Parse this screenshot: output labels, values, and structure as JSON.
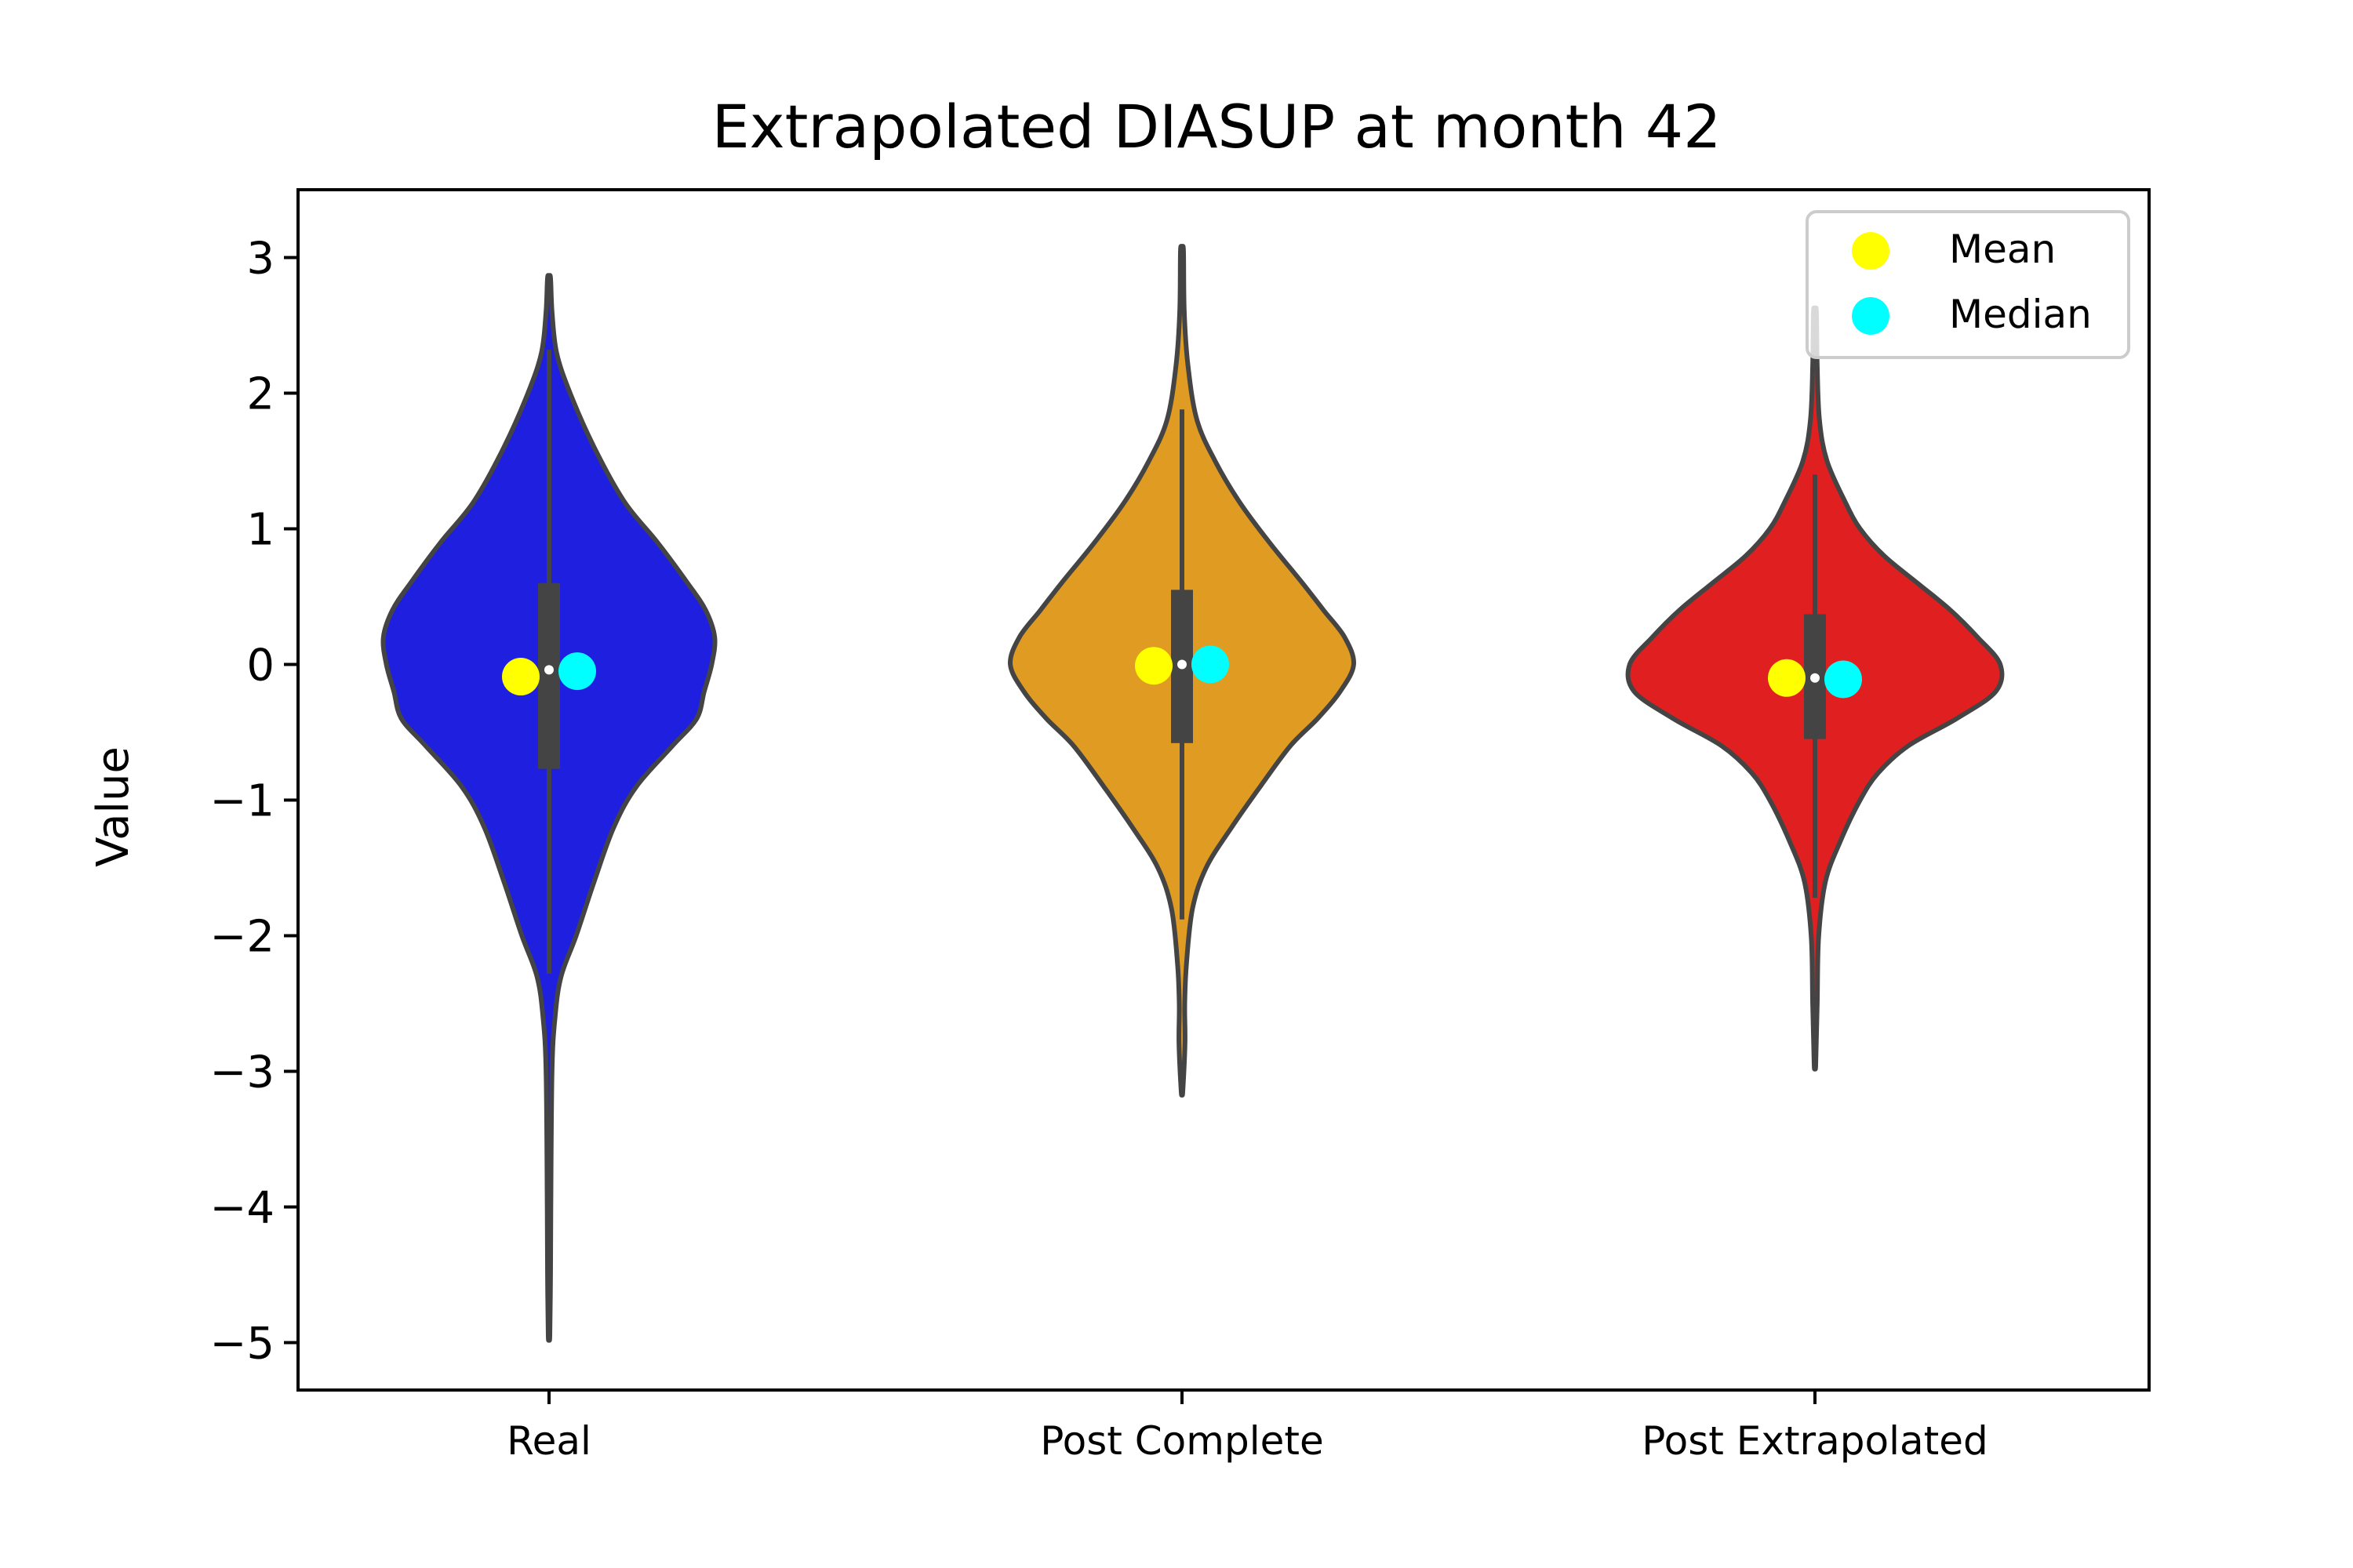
{
  "chart_data": {
    "type": "violin",
    "title": "Extrapolated DIASUP at month 42",
    "xlabel": "",
    "ylabel": "Value",
    "ylim": [
      -5.35,
      3.5
    ],
    "yticks": [
      3,
      2,
      1,
      0,
      -1,
      -2,
      -3,
      -4,
      -5
    ],
    "ytick_labels": [
      "3",
      "2",
      "1",
      "0",
      "−1",
      "−2",
      "−3",
      "−4",
      "−5"
    ],
    "categories": [
      "Real",
      "Post Complete",
      "Post Extrapolated"
    ],
    "legend": {
      "position": "top-right",
      "entries": [
        {
          "label": "Mean",
          "color": "#ffff00"
        },
        {
          "label": "Median",
          "color": "#00ffff"
        }
      ]
    },
    "violins": [
      {
        "name": "Real",
        "color": "#1f1fe0",
        "min": -4.95,
        "max": 2.85,
        "q1": -0.77,
        "q3": 0.6,
        "whisker_low": -2.28,
        "whisker_high": 2.32,
        "median": -0.04,
        "mean": -0.09,
        "median_marker": -0.05,
        "profile": [
          [
            2.85,
            0.01
          ],
          [
            2.6,
            0.02
          ],
          [
            2.3,
            0.05
          ],
          [
            2.0,
            0.14
          ],
          [
            1.6,
            0.3
          ],
          [
            1.2,
            0.5
          ],
          [
            0.9,
            0.72
          ],
          [
            0.6,
            0.92
          ],
          [
            0.4,
            1.04
          ],
          [
            0.2,
            1.1
          ],
          [
            0.0,
            1.08
          ],
          [
            -0.2,
            1.03
          ],
          [
            -0.4,
            0.98
          ],
          [
            -0.6,
            0.82
          ],
          [
            -0.9,
            0.58
          ],
          [
            -1.2,
            0.43
          ],
          [
            -1.6,
            0.3
          ],
          [
            -2.0,
            0.18
          ],
          [
            -2.3,
            0.08
          ],
          [
            -2.6,
            0.04
          ],
          [
            -3.0,
            0.02
          ],
          [
            -4.0,
            0.012
          ],
          [
            -4.5,
            0.01
          ],
          [
            -4.95,
            0.005
          ]
        ]
      },
      {
        "name": "Post Complete",
        "color": "#e09b22",
        "min": -3.15,
        "max": 3.05,
        "q1": -0.58,
        "q3": 0.55,
        "whisker_low": -1.88,
        "whisker_high": 1.88,
        "median": 0.0,
        "mean": -0.01,
        "median_marker": 0.0,
        "profile": [
          [
            3.05,
            0.01
          ],
          [
            2.6,
            0.015
          ],
          [
            2.2,
            0.04
          ],
          [
            1.8,
            0.1
          ],
          [
            1.5,
            0.22
          ],
          [
            1.2,
            0.38
          ],
          [
            0.9,
            0.58
          ],
          [
            0.6,
            0.8
          ],
          [
            0.4,
            0.94
          ],
          [
            0.2,
            1.08
          ],
          [
            0.0,
            1.14
          ],
          [
            -0.2,
            1.05
          ],
          [
            -0.4,
            0.9
          ],
          [
            -0.6,
            0.72
          ],
          [
            -0.9,
            0.52
          ],
          [
            -1.2,
            0.33
          ],
          [
            -1.5,
            0.16
          ],
          [
            -1.8,
            0.07
          ],
          [
            -2.2,
            0.03
          ],
          [
            -2.5,
            0.018
          ],
          [
            -2.8,
            0.02
          ],
          [
            -3.15,
            0.005
          ]
        ]
      },
      {
        "name": "Post Extrapolated",
        "color": "#e02020",
        "min": -2.95,
        "max": 2.6,
        "q1": -0.55,
        "q3": 0.37,
        "whisker_low": -1.72,
        "whisker_high": 1.4,
        "median": -0.1,
        "mean": -0.1,
        "median_marker": -0.11,
        "profile": [
          [
            2.6,
            0.01
          ],
          [
            2.2,
            0.015
          ],
          [
            1.8,
            0.03
          ],
          [
            1.5,
            0.08
          ],
          [
            1.2,
            0.2
          ],
          [
            1.0,
            0.3
          ],
          [
            0.8,
            0.46
          ],
          [
            0.6,
            0.68
          ],
          [
            0.4,
            0.9
          ],
          [
            0.2,
            1.08
          ],
          [
            0.0,
            1.23
          ],
          [
            -0.2,
            1.2
          ],
          [
            -0.4,
            0.94
          ],
          [
            -0.6,
            0.62
          ],
          [
            -0.8,
            0.42
          ],
          [
            -1.0,
            0.3
          ],
          [
            -1.3,
            0.17
          ],
          [
            -1.6,
            0.07
          ],
          [
            -2.0,
            0.025
          ],
          [
            -2.5,
            0.015
          ],
          [
            -2.95,
            0.005
          ]
        ]
      }
    ]
  }
}
